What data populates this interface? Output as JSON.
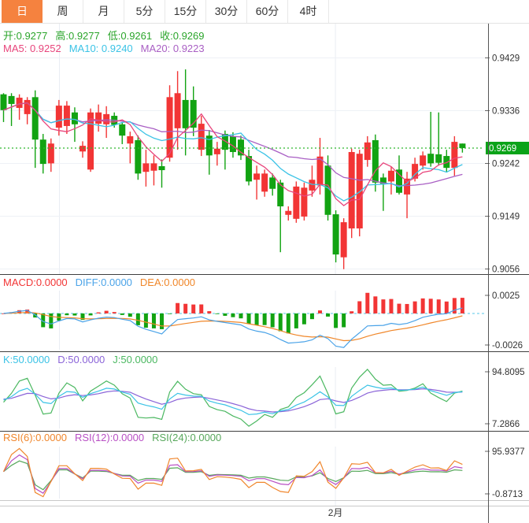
{
  "tabs": {
    "items": [
      {
        "label": "日",
        "active": true
      },
      {
        "label": "周",
        "active": false
      },
      {
        "label": "月",
        "active": false
      },
      {
        "label": "5分",
        "active": false
      },
      {
        "label": "15分",
        "active": false
      },
      {
        "label": "30分",
        "active": false
      },
      {
        "label": "60分",
        "active": false
      },
      {
        "label": "4时",
        "active": false
      }
    ]
  },
  "colors": {
    "up": "#f23535",
    "down": "#12a312",
    "tab_active_bg": "#f5823f",
    "ohlc_text": "#2ba52b",
    "ma5": "#e8457c",
    "ma10": "#3bc3e6",
    "ma20": "#a95fc4",
    "macd_label": "#f23535",
    "diff": "#4aa3e8",
    "dea": "#f0872a",
    "k": "#3bc3e6",
    "d": "#8b64d8",
    "j": "#4bb861",
    "rsi6": "#f0862c",
    "rsi12": "#b84fc4",
    "rsi24": "#58a85c",
    "close_line": "#2db82d",
    "close_badge_bg": "#0aa318",
    "close_badge_text": "#ffffff",
    "zero_dash_line": "#57c8e8",
    "grid": "#eef1f6",
    "separator_dark": "#3f3f3f",
    "separator_light": "#c9c9c9",
    "axis_line": "#555555",
    "label_text": "#333333"
  },
  "main": {
    "ohlc_items": [
      {
        "text": "开:0.9277"
      },
      {
        "text": "高:0.9277"
      },
      {
        "text": "低:0.9261"
      },
      {
        "text": "收:0.9269"
      }
    ],
    "ma_items": [
      {
        "text": "MA5: 0.9252",
        "color_key": "ma5"
      },
      {
        "text": "MA10: 0.9240",
        "color_key": "ma10"
      },
      {
        "text": "MA20: 0.9223",
        "color_key": "ma20"
      }
    ],
    "y_tick_labels": [
      "0.9429",
      "0.9336",
      "0.9242",
      "0.9149",
      "0.9056"
    ],
    "close_badge": "0.9269"
  },
  "macd_panel": {
    "labels": [
      {
        "text": "MACD:0.0000",
        "color_key": "macd_label"
      },
      {
        "text": "DIFF:0.0000",
        "color_key": "diff"
      },
      {
        "text": "DEA:0.0000",
        "color_key": "dea"
      }
    ],
    "y_tick_top": "0.0025",
    "y_tick_bottom": "-0.0026"
  },
  "kdj_panel": {
    "labels": [
      {
        "text": "K:50.0000",
        "color_key": "k"
      },
      {
        "text": "D:50.0000",
        "color_key": "d"
      },
      {
        "text": "J:50.0000",
        "color_key": "j"
      }
    ],
    "y_tick_top": "94.8095",
    "y_tick_bottom": "7.2866"
  },
  "rsi_panel": {
    "labels": [
      {
        "text": "RSI(6):0.0000",
        "color_key": "rsi6"
      },
      {
        "text": "RSI(12):0.0000",
        "color_key": "rsi12"
      },
      {
        "text": "RSI(24):0.0000",
        "color_key": "rsi24"
      }
    ],
    "y_tick_top": "95.9377",
    "y_tick_bottom": "-0.8713"
  },
  "xaxis": {
    "month_label": "2月",
    "month_index": 42
  },
  "chart_data": {
    "type": "candlestick",
    "note": "daily candles, up=red down=green (CN convention)",
    "ohlc_readout": {
      "open": 0.9277,
      "high": 0.9277,
      "low": 0.9261,
      "close": 0.9269
    },
    "overlays": [
      {
        "name": "MA5",
        "value": 0.9252
      },
      {
        "name": "MA10",
        "value": 0.924
      },
      {
        "name": "MA20",
        "value": 0.9223
      }
    ],
    "main_y_ticks": [
      0.9429,
      0.9336,
      0.9269,
      0.9242,
      0.9149,
      0.9056
    ],
    "axis_top_price": 0.94889,
    "axis_bottom_price": 0.90463,
    "indicators": [
      {
        "name": "MACD",
        "values": {
          "MACD": 0.0,
          "DIFF": 0.0,
          "DEA": 0.0
        },
        "y_range": [
          -0.0026,
          0.0025
        ]
      },
      {
        "name": "KDJ",
        "values": {
          "K": 50.0,
          "D": 50.0,
          "J": 50.0
        },
        "y_range": [
          7.2866,
          94.8095
        ]
      },
      {
        "name": "RSI",
        "values": {
          "RSI6": 0.0,
          "RSI12": 0.0,
          "RSI24": 0.0
        },
        "y_range": [
          -0.8713,
          95.9377
        ]
      }
    ],
    "candles": [
      [
        0.9364,
        0.9366,
        0.9315,
        0.9336
      ],
      [
        0.9361,
        0.9366,
        0.9308,
        0.9347
      ],
      [
        0.934,
        0.9364,
        0.9319,
        0.9358
      ],
      [
        0.9329,
        0.9359,
        0.9311,
        0.9354
      ],
      [
        0.9359,
        0.9371,
        0.9234,
        0.9284
      ],
      [
        0.9284,
        0.9294,
        0.9224,
        0.9241
      ],
      [
        0.9242,
        0.9286,
        0.9227,
        0.9277
      ],
      [
        0.9305,
        0.9354,
        0.9291,
        0.9344
      ],
      [
        0.9308,
        0.9352,
        0.9294,
        0.9344
      ],
      [
        0.9332,
        0.9341,
        0.928,
        0.9311
      ],
      [
        0.9263,
        0.9281,
        0.9252,
        0.9273
      ],
      [
        0.9231,
        0.9339,
        0.9227,
        0.9332
      ],
      [
        0.9312,
        0.9346,
        0.9298,
        0.9332
      ],
      [
        0.9311,
        0.9343,
        0.9287,
        0.9329
      ],
      [
        0.9326,
        0.9332,
        0.9305,
        0.931
      ],
      [
        0.9311,
        0.9315,
        0.9276,
        0.9291
      ],
      [
        0.9277,
        0.9298,
        0.9242,
        0.929
      ],
      [
        0.9283,
        0.9291,
        0.9213,
        0.9224
      ],
      [
        0.9227,
        0.9266,
        0.9201,
        0.9242
      ],
      [
        0.9229,
        0.9256,
        0.9203,
        0.9242
      ],
      [
        0.9237,
        0.9249,
        0.9199,
        0.923
      ],
      [
        0.9252,
        0.938,
        0.9245,
        0.9359
      ],
      [
        0.9304,
        0.9405,
        0.9266,
        0.9366
      ],
      [
        0.9354,
        0.9408,
        0.9256,
        0.9304
      ],
      [
        0.9354,
        0.9378,
        0.929,
        0.9305
      ],
      [
        0.9266,
        0.9326,
        0.9255,
        0.9312
      ],
      [
        0.9291,
        0.9301,
        0.9222,
        0.9256
      ],
      [
        0.9258,
        0.928,
        0.9238,
        0.9268
      ],
      [
        0.9294,
        0.93,
        0.9231,
        0.9266
      ],
      [
        0.929,
        0.9297,
        0.9252,
        0.9262
      ],
      [
        0.9284,
        0.9291,
        0.9248,
        0.9256
      ],
      [
        0.9255,
        0.9266,
        0.9203,
        0.921
      ],
      [
        0.9213,
        0.9238,
        0.9178,
        0.9224
      ],
      [
        0.9192,
        0.9231,
        0.9183,
        0.9224
      ],
      [
        0.9217,
        0.9224,
        0.9185,
        0.9197
      ],
      [
        0.9208,
        0.9213,
        0.9085,
        0.9166
      ],
      [
        0.9151,
        0.9166,
        0.9141,
        0.9158
      ],
      [
        0.9144,
        0.921,
        0.9137,
        0.9201
      ],
      [
        0.9148,
        0.9208,
        0.9141,
        0.9199
      ],
      [
        0.9194,
        0.9238,
        0.9183,
        0.9213
      ],
      [
        0.9203,
        0.9287,
        0.9187,
        0.9254
      ],
      [
        0.9238,
        0.9256,
        0.9141,
        0.9151
      ],
      [
        0.9152,
        0.9159,
        0.9067,
        0.9081
      ],
      [
        0.9076,
        0.9145,
        0.9055,
        0.9138
      ],
      [
        0.9127,
        0.9268,
        0.911,
        0.9262
      ],
      [
        0.9127,
        0.9266,
        0.9113,
        0.9259
      ],
      [
        0.9248,
        0.929,
        0.9236,
        0.9279
      ],
      [
        0.9283,
        0.9293,
        0.9192,
        0.9208
      ],
      [
        0.9217,
        0.9224,
        0.9158,
        0.9206
      ],
      [
        0.921,
        0.9236,
        0.9187,
        0.9229
      ],
      [
        0.9231,
        0.9256,
        0.9187,
        0.919
      ],
      [
        0.9187,
        0.9227,
        0.9145,
        0.9215
      ],
      [
        0.9215,
        0.9252,
        0.921,
        0.9241
      ],
      [
        0.9238,
        0.9263,
        0.9231,
        0.9256
      ],
      [
        0.9259,
        0.9333,
        0.9236,
        0.9242
      ],
      [
        0.9258,
        0.9332,
        0.9238,
        0.9243
      ],
      [
        0.9255,
        0.9266,
        0.9227,
        0.9234
      ],
      [
        0.9234,
        0.929,
        0.922,
        0.928
      ],
      [
        0.9277,
        0.9277,
        0.9261,
        0.9269
      ]
    ]
  }
}
